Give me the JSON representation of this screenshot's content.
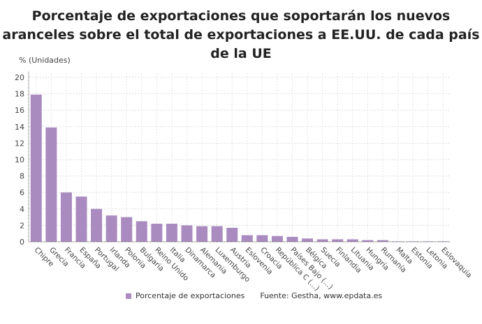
{
  "title": "Porcentaje de exportaciones que soportarán los nuevos aranceles sobre el total de exportaciones a EE.UU. de cada país de la UE",
  "chart_data": {
    "type": "bar",
    "title": "Porcentaje de exportaciones que soportarán los nuevos aranceles sobre el total de exportaciones a EE.UU. de cada país de la UE",
    "ylabel": "% (Unidades)",
    "xlabel": "",
    "ylim": [
      0,
      21
    ],
    "yticks": [
      0,
      2,
      4,
      6,
      8,
      10,
      12,
      14,
      16,
      18,
      20
    ],
    "grid": true,
    "legend_position": "bottom",
    "color": "#a98bc0",
    "categories": [
      "Chipre",
      "Grecia",
      "Francia",
      "España",
      "Portugal",
      "Irlanda",
      "Polonia",
      "Bulgaria",
      "Reino Unido",
      "Italia",
      "Dinamarca",
      "Alemania",
      "Luxemburgo",
      "Austria",
      "Eslovenia",
      "Croacia",
      "República C (...)",
      "Países Bajo (...)",
      "Bélgica",
      "Suecia",
      "Finlandia",
      "Lituania",
      "Hungría",
      "Rumanía",
      "Malta",
      "Estonia",
      "Letonia",
      "Eslovaquia"
    ],
    "series": [
      {
        "name": "Porcentaje de exportaciones",
        "values": [
          17.9,
          13.9,
          6.0,
          5.5,
          4.0,
          3.2,
          3.0,
          2.5,
          2.2,
          2.2,
          2.0,
          1.9,
          1.9,
          1.7,
          0.8,
          0.8,
          0.7,
          0.6,
          0.4,
          0.3,
          0.3,
          0.3,
          0.2,
          0.2,
          0.05,
          0.05,
          0.05,
          0.05
        ]
      }
    ]
  },
  "source": "Fuente: Gestha, www.epdata.es"
}
